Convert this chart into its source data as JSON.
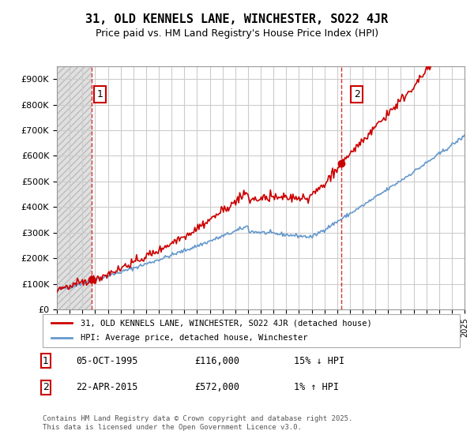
{
  "title": "31, OLD KENNELS LANE, WINCHESTER, SO22 4JR",
  "subtitle": "Price paid vs. HM Land Registry's House Price Index (HPI)",
  "ylabel_max": 900000,
  "yticks": [
    0,
    100000,
    200000,
    300000,
    400000,
    500000,
    600000,
    700000,
    800000,
    900000
  ],
  "ytick_labels": [
    "£0",
    "£100K",
    "£200K",
    "£300K",
    "£400K",
    "£500K",
    "£600K",
    "£700K",
    "£800K",
    "£900K"
  ],
  "xmin": 1993,
  "xmax": 2025,
  "hpi_color": "#6699cc",
  "price_color": "#cc0000",
  "sale1_year": 1995.75,
  "sale1_price": 116000,
  "sale2_year": 2015.3,
  "sale2_price": 572000,
  "legend_entry1": "31, OLD KENNELS LANE, WINCHESTER, SO22 4JR (detached house)",
  "legend_entry2": "HPI: Average price, detached house, Winchester",
  "annotation1_label": "1",
  "annotation2_label": "2",
  "table_row1": [
    "1",
    "05-OCT-1995",
    "£116,000",
    "15% ↓ HPI"
  ],
  "table_row2": [
    "2",
    "22-APR-2015",
    "£572,000",
    "1% ↑ HPI"
  ],
  "footnote": "Contains HM Land Registry data © Crown copyright and database right 2025.\nThis data is licensed under the Open Government Licence v3.0.",
  "hatch_color": "#cccccc",
  "grid_color": "#cccccc",
  "background_hatch": "#e8e8e8"
}
